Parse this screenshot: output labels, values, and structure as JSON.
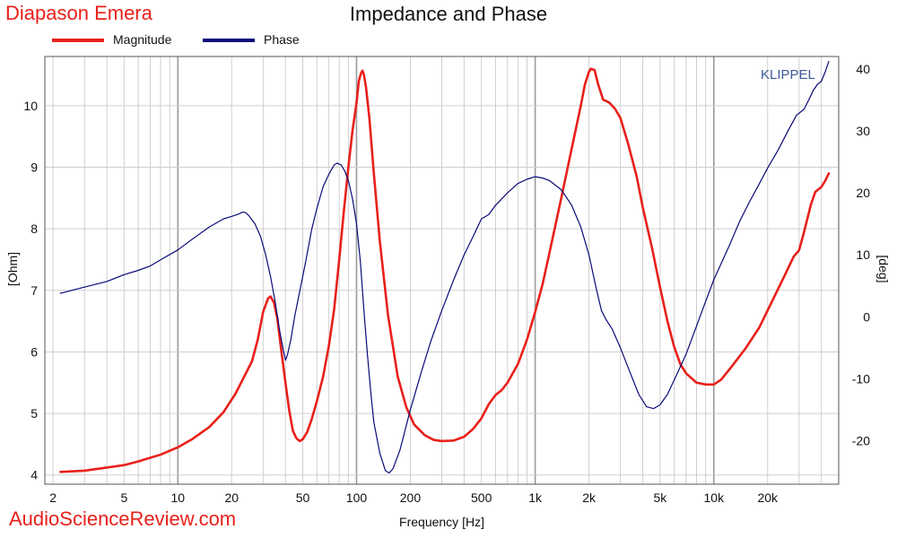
{
  "header": {
    "product": "Diapason Emera",
    "title": "Impedance and Phase"
  },
  "legend": [
    {
      "label": "Magnitude",
      "color": "#e8201a"
    },
    {
      "label": "Phase",
      "color": "#0a0a78"
    }
  ],
  "brand_text": "KLIPPEL",
  "watermark": "AudioScienceReview.com",
  "chart_data": {
    "type": "line",
    "title": "Impedance and Phase",
    "xlabel": "Frequency [Hz]",
    "ylabel_left": "[Ohm]",
    "ylabel_right": "[deg]",
    "x_scale": "log",
    "xlim": [
      1.8,
      50000
    ],
    "ylim_left": [
      3.85,
      10.8
    ],
    "ylim_right": [
      -27,
      42
    ],
    "x_ticks": [
      {
        "value": 2,
        "label": "2"
      },
      {
        "value": 5,
        "label": "5"
      },
      {
        "value": 10,
        "label": "10"
      },
      {
        "value": 20,
        "label": "20"
      },
      {
        "value": 50,
        "label": "50"
      },
      {
        "value": 100,
        "label": "100"
      },
      {
        "value": 200,
        "label": "200"
      },
      {
        "value": 500,
        "label": "500"
      },
      {
        "value": 1000,
        "label": "1k"
      },
      {
        "value": 2000,
        "label": "2k"
      },
      {
        "value": 5000,
        "label": "5k"
      },
      {
        "value": 10000,
        "label": "10k"
      },
      {
        "value": 20000,
        "label": "20k"
      }
    ],
    "y_ticks_left": [
      4,
      5,
      6,
      7,
      8,
      9,
      10
    ],
    "y_ticks_right": [
      -20,
      -10,
      0,
      10,
      20,
      30,
      40
    ],
    "grid": true,
    "legend_position": "top-left",
    "series": [
      {
        "name": "Magnitude",
        "axis": "left",
        "color": "#e8201a",
        "points": [
          [
            2.2,
            4.05
          ],
          [
            3,
            4.07
          ],
          [
            4,
            4.12
          ],
          [
            5,
            4.16
          ],
          [
            6,
            4.22
          ],
          [
            7,
            4.28
          ],
          [
            8,
            4.33
          ],
          [
            10,
            4.45
          ],
          [
            12,
            4.58
          ],
          [
            15,
            4.78
          ],
          [
            18,
            5.02
          ],
          [
            21,
            5.32
          ],
          [
            24,
            5.65
          ],
          [
            26,
            5.85
          ],
          [
            28,
            6.2
          ],
          [
            30,
            6.65
          ],
          [
            32,
            6.87
          ],
          [
            33,
            6.9
          ],
          [
            34.5,
            6.8
          ],
          [
            36,
            6.55
          ],
          [
            38,
            6.0
          ],
          [
            40,
            5.5
          ],
          [
            42,
            5.05
          ],
          [
            44,
            4.72
          ],
          [
            46,
            4.6
          ],
          [
            48,
            4.55
          ],
          [
            50,
            4.58
          ],
          [
            53,
            4.7
          ],
          [
            56,
            4.9
          ],
          [
            60,
            5.2
          ],
          [
            65,
            5.6
          ],
          [
            70,
            6.1
          ],
          [
            75,
            6.7
          ],
          [
            80,
            7.5
          ],
          [
            85,
            8.3
          ],
          [
            90,
            9.0
          ],
          [
            95,
            9.6
          ],
          [
            100,
            10.05
          ],
          [
            103,
            10.4
          ],
          [
            106,
            10.53
          ],
          [
            108,
            10.57
          ],
          [
            110,
            10.5
          ],
          [
            113,
            10.3
          ],
          [
            118,
            9.8
          ],
          [
            125,
            8.9
          ],
          [
            135,
            7.8
          ],
          [
            150,
            6.6
          ],
          [
            170,
            5.6
          ],
          [
            190,
            5.1
          ],
          [
            210,
            4.82
          ],
          [
            240,
            4.65
          ],
          [
            270,
            4.57
          ],
          [
            300,
            4.55
          ],
          [
            350,
            4.56
          ],
          [
            400,
            4.62
          ],
          [
            450,
            4.75
          ],
          [
            500,
            4.92
          ],
          [
            550,
            5.15
          ],
          [
            600,
            5.3
          ],
          [
            650,
            5.38
          ],
          [
            700,
            5.5
          ],
          [
            800,
            5.8
          ],
          [
            900,
            6.2
          ],
          [
            1000,
            6.65
          ],
          [
            1100,
            7.1
          ],
          [
            1200,
            7.6
          ],
          [
            1400,
            8.5
          ],
          [
            1600,
            9.3
          ],
          [
            1800,
            10.0
          ],
          [
            1900,
            10.35
          ],
          [
            2000,
            10.55
          ],
          [
            2050,
            10.6
          ],
          [
            2150,
            10.58
          ],
          [
            2250,
            10.35
          ],
          [
            2400,
            10.1
          ],
          [
            2600,
            10.05
          ],
          [
            2800,
            9.95
          ],
          [
            3000,
            9.8
          ],
          [
            3300,
            9.4
          ],
          [
            3700,
            8.85
          ],
          [
            4000,
            8.35
          ],
          [
            4500,
            7.7
          ],
          [
            5000,
            7.05
          ],
          [
            5500,
            6.5
          ],
          [
            6000,
            6.08
          ],
          [
            6500,
            5.8
          ],
          [
            7000,
            5.65
          ],
          [
            8000,
            5.5
          ],
          [
            9000,
            5.47
          ],
          [
            10000,
            5.47
          ],
          [
            11000,
            5.55
          ],
          [
            12500,
            5.75
          ],
          [
            15000,
            6.05
          ],
          [
            18000,
            6.4
          ],
          [
            21000,
            6.8
          ],
          [
            25000,
            7.25
          ],
          [
            28000,
            7.55
          ],
          [
            30000,
            7.65
          ],
          [
            32000,
            7.95
          ],
          [
            35000,
            8.4
          ],
          [
            37000,
            8.6
          ],
          [
            40000,
            8.68
          ],
          [
            42000,
            8.78
          ],
          [
            44000,
            8.9
          ]
        ]
      },
      {
        "name": "Phase",
        "axis": "right",
        "color": "#0a0a78",
        "points": [
          [
            2.2,
            3.8
          ],
          [
            3,
            4.8
          ],
          [
            4,
            5.7
          ],
          [
            5,
            6.8
          ],
          [
            6,
            7.5
          ],
          [
            7,
            8.2
          ],
          [
            8,
            9.2
          ],
          [
            10,
            10.8
          ],
          [
            12,
            12.5
          ],
          [
            15,
            14.5
          ],
          [
            18,
            15.8
          ],
          [
            20,
            16.2
          ],
          [
            22,
            16.6
          ],
          [
            23,
            16.9
          ],
          [
            24,
            16.8
          ],
          [
            25,
            16.3
          ],
          [
            27,
            15.0
          ],
          [
            29,
            13.0
          ],
          [
            31,
            10.0
          ],
          [
            33,
            6.5
          ],
          [
            35,
            2.5
          ],
          [
            37,
            -2.0
          ],
          [
            39,
            -5.5
          ],
          [
            40,
            -7.0
          ],
          [
            41,
            -6.2
          ],
          [
            43,
            -3.5
          ],
          [
            45,
            0.0
          ],
          [
            48,
            4.0
          ],
          [
            52,
            9.0
          ],
          [
            56,
            14.0
          ],
          [
            60,
            17.5
          ],
          [
            65,
            21.0
          ],
          [
            70,
            23.0
          ],
          [
            75,
            24.5
          ],
          [
            78,
            24.8
          ],
          [
            82,
            24.5
          ],
          [
            86,
            23.5
          ],
          [
            90,
            22.0
          ],
          [
            95,
            19.0
          ],
          [
            100,
            15.0
          ],
          [
            105,
            9.0
          ],
          [
            110,
            1.0
          ],
          [
            115,
            -6.0
          ],
          [
            120,
            -12.0
          ],
          [
            125,
            -17.0
          ],
          [
            135,
            -22.0
          ],
          [
            145,
            -24.8
          ],
          [
            152,
            -25.2
          ],
          [
            160,
            -24.5
          ],
          [
            175,
            -21.5
          ],
          [
            200,
            -15.0
          ],
          [
            230,
            -9.0
          ],
          [
            260,
            -4.0
          ],
          [
            300,
            1.0
          ],
          [
            350,
            6.0
          ],
          [
            400,
            10.0
          ],
          [
            450,
            13.0
          ],
          [
            500,
            15.8
          ],
          [
            550,
            16.5
          ],
          [
            600,
            18.0
          ],
          [
            700,
            20.0
          ],
          [
            800,
            21.5
          ],
          [
            900,
            22.2
          ],
          [
            1000,
            22.6
          ],
          [
            1100,
            22.4
          ],
          [
            1200,
            22.0
          ],
          [
            1400,
            20.5
          ],
          [
            1600,
            18.0
          ],
          [
            1800,
            14.5
          ],
          [
            2000,
            10.0
          ],
          [
            2200,
            4.5
          ],
          [
            2350,
            1.0
          ],
          [
            2500,
            -0.5
          ],
          [
            2700,
            -2.0
          ],
          [
            3000,
            -5.0
          ],
          [
            3400,
            -9.0
          ],
          [
            3800,
            -12.5
          ],
          [
            4200,
            -14.5
          ],
          [
            4600,
            -14.8
          ],
          [
            5000,
            -14.2
          ],
          [
            5500,
            -12.5
          ],
          [
            6000,
            -10.2
          ],
          [
            7000,
            -6.0
          ],
          [
            8000,
            -1.5
          ],
          [
            9000,
            2.5
          ],
          [
            10000,
            6.0
          ],
          [
            12000,
            11.0
          ],
          [
            14000,
            15.5
          ],
          [
            16000,
            18.8
          ],
          [
            18000,
            21.5
          ],
          [
            20000,
            24.0
          ],
          [
            23000,
            27.0
          ],
          [
            26000,
            30.0
          ],
          [
            29000,
            32.5
          ],
          [
            32000,
            33.5
          ],
          [
            34000,
            35.0
          ],
          [
            36000,
            36.5
          ],
          [
            38000,
            37.5
          ],
          [
            40000,
            38.0
          ],
          [
            42000,
            39.5
          ],
          [
            44000,
            41.2
          ]
        ]
      }
    ]
  }
}
